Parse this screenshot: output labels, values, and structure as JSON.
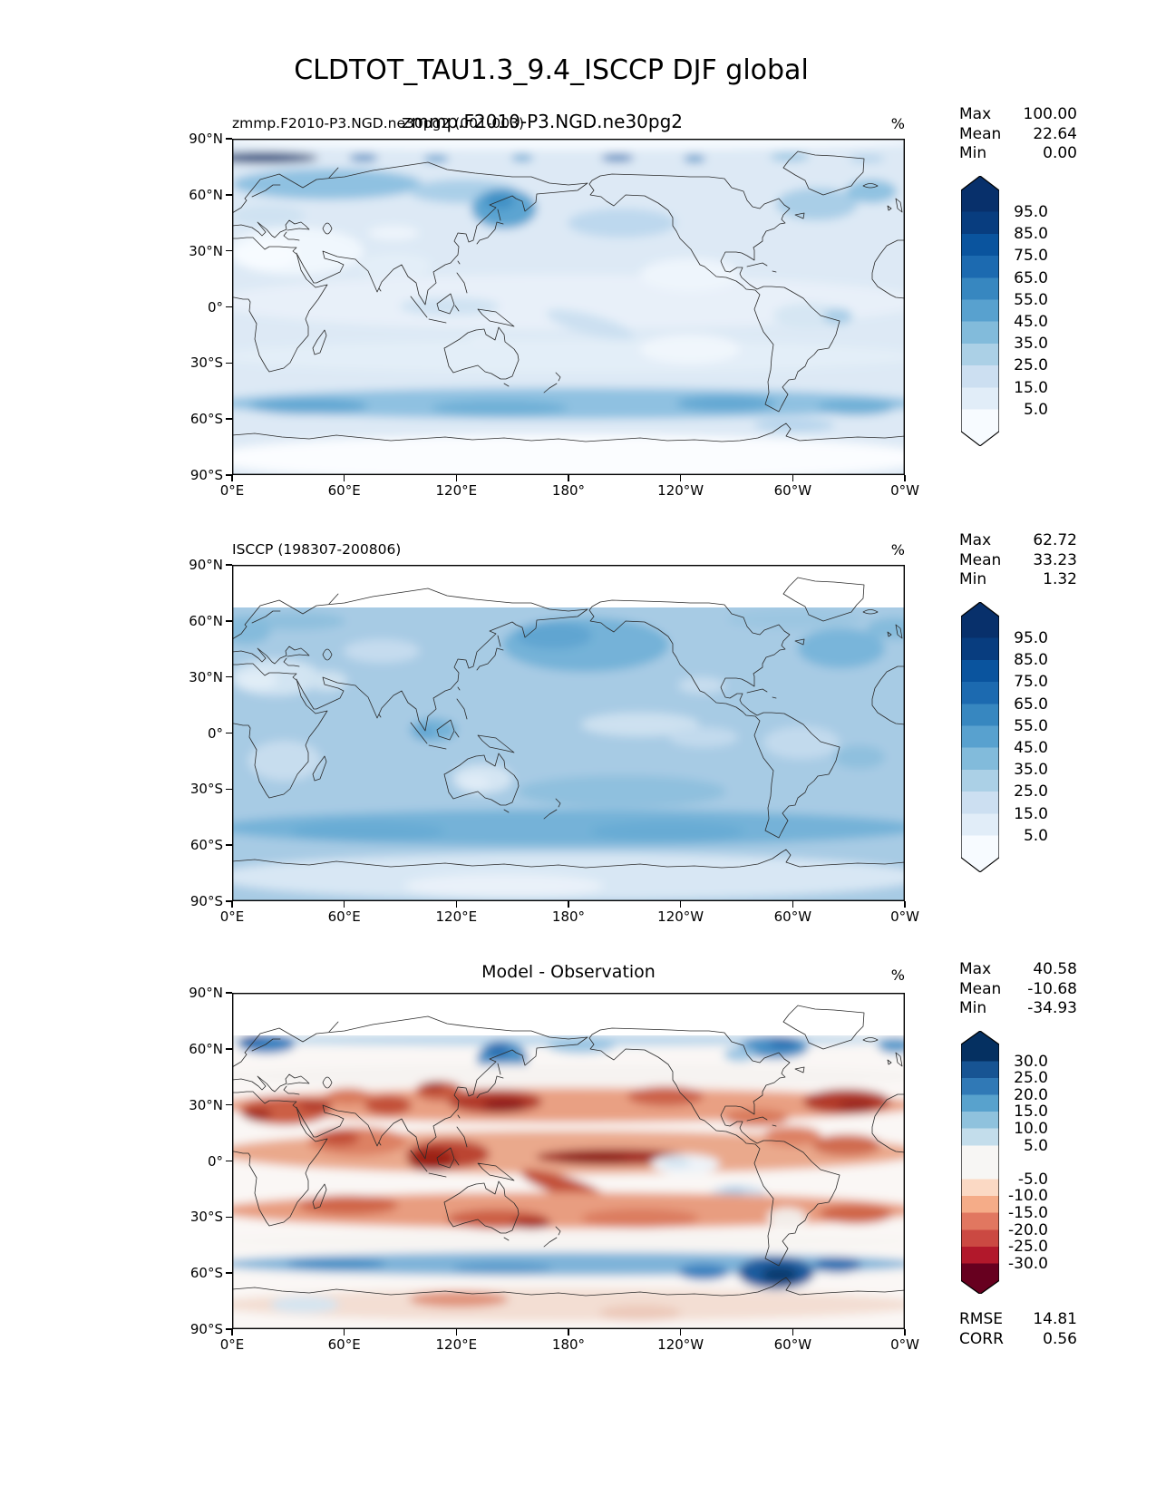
{
  "chart_data": {
    "type": "heatmap",
    "subtype": "filled-contour latitude-longitude maps, 3 stacked panels (model, observation, difference)",
    "title": "CLDTOT_TAU1.3_9.4_ISCCP DJF global",
    "units": "%",
    "x_ticks": [
      "0°E",
      "60°E",
      "120°E",
      "180°",
      "120°W",
      "60°W",
      "0°W"
    ],
    "y_ticks": [
      "90°N",
      "60°N",
      "30°N",
      "0°",
      "30°S",
      "60°S",
      "90°S"
    ],
    "stat_labels": {
      "max": "Max",
      "mean": "Mean",
      "min": "Min"
    },
    "metric_labels": {
      "rmse": "RMSE",
      "corr": "CORR"
    },
    "panels": [
      {
        "name": "model",
        "title_left": "zmmp.F2010-P3.NGD.ne30pg2 (001-003)",
        "title_center": "zmmp.F2010-P3.NGD.ne30pg2",
        "units": "%",
        "stats": {
          "max": "100.00",
          "mean": "22.64",
          "min": "0.00"
        },
        "colorbar": {
          "ticks": [
            "95.0",
            "85.0",
            "75.0",
            "65.0",
            "55.0",
            "45.0",
            "35.0",
            "25.0",
            "15.0",
            "5.0"
          ],
          "colors": [
            "#08306b",
            "#083d7f",
            "#0a549e",
            "#1c6ab0",
            "#3787c0",
            "#58a1cf",
            "#82bbdb",
            "#abd0e6",
            "#ccdff1",
            "#e1edf8",
            "#f7fbff"
          ],
          "seg_heights": [
            24,
            24.2,
            24.2,
            24.2,
            24.2,
            24.2,
            24.2,
            24.2,
            24.2,
            24.2,
            24
          ],
          "tri": 16
        }
      },
      {
        "name": "observation",
        "title_left": "ISCCP (198307-200806)",
        "units": "%",
        "stats": {
          "max": "62.72",
          "mean": "33.23",
          "min": "1.32"
        },
        "colorbar": {
          "ticks": [
            "95.0",
            "85.0",
            "75.0",
            "65.0",
            "55.0",
            "45.0",
            "35.0",
            "25.0",
            "15.0",
            "5.0"
          ],
          "colors": [
            "#08306b",
            "#083d7f",
            "#0a549e",
            "#1c6ab0",
            "#3787c0",
            "#58a1cf",
            "#82bbdb",
            "#abd0e6",
            "#ccdff1",
            "#e1edf8",
            "#f7fbff"
          ],
          "seg_heights": [
            24,
            24.2,
            24.2,
            24.2,
            24.2,
            24.2,
            24.2,
            24.2,
            24.2,
            24.2,
            24
          ],
          "tri": 16
        }
      },
      {
        "name": "difference",
        "title_center": "Model - Observation",
        "units": "%",
        "stats": {
          "max": "40.58",
          "mean": "-10.68",
          "min": "-34.93"
        },
        "metrics": {
          "rmse": "14.81",
          "corr": "0.56"
        },
        "colorbar": {
          "ticks": [
            "30.0",
            "25.0",
            "20.0",
            "15.0",
            "10.0",
            "5.0",
            "-5.0",
            "-10.0",
            "-15.0",
            "-20.0",
            "-25.0",
            "-30.0"
          ],
          "colors": [
            "#053061",
            "#175493",
            "#3079b6",
            "#58a2cd",
            "#8fc2dd",
            "#c3ddeb",
            "#f7f6f4",
            "#fbd9c4",
            "#f5ac88",
            "#e17760",
            "#cb4942",
            "#b2182b",
            "#67001f"
          ],
          "seg_heights": [
            18.6,
            18.6,
            18.6,
            18.6,
            18.6,
            18.6,
            37.2,
            18.6,
            18.6,
            18.6,
            18.6,
            18.6,
            18.6
          ],
          "tri": 15
        }
      }
    ]
  }
}
